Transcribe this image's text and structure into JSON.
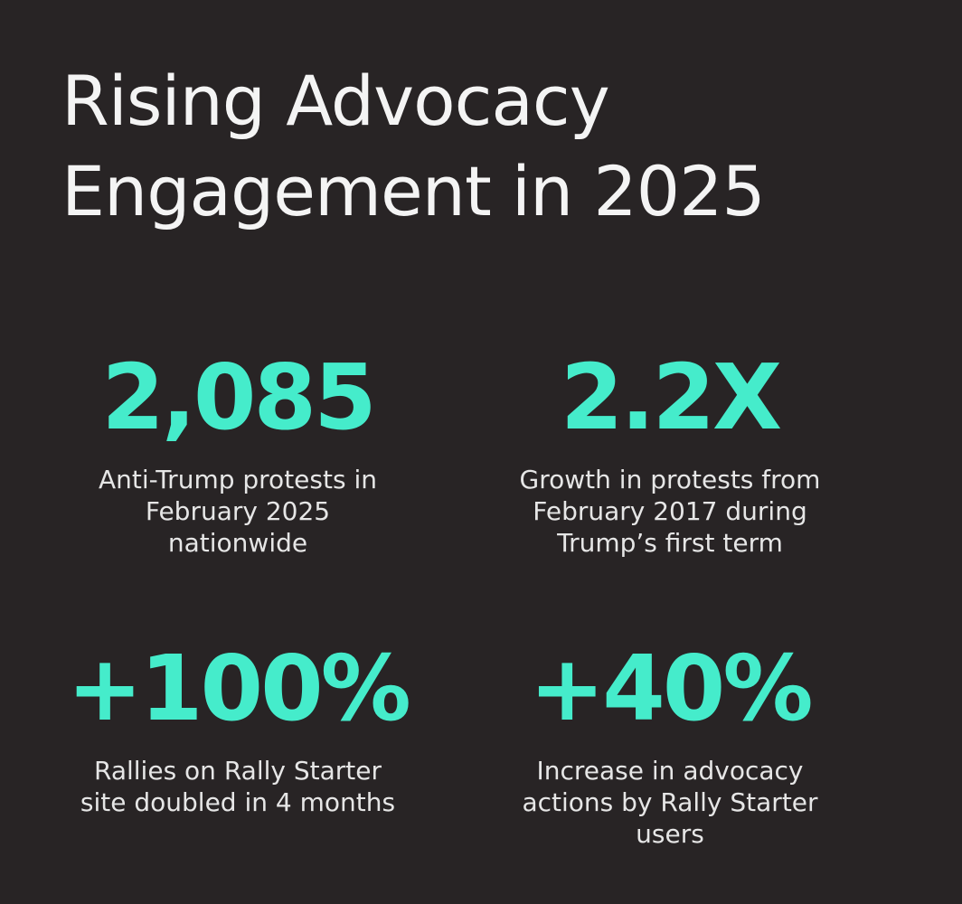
{
  "title": {
    "line1": "Rising Advocacy",
    "line2": "Engagement in 2025"
  },
  "stats": [
    {
      "value": "2,085",
      "description": [
        "Anti-Trump protests in",
        "February 2025",
        "nationwide"
      ]
    },
    {
      "value": "2.2X",
      "description": [
        "Growth in protests from",
        "February 2017 during",
        "Trump’s first term"
      ]
    },
    {
      "value": "+100%",
      "description": [
        "Rallies on Rally Starter",
        "site doubled in 4 months"
      ]
    },
    {
      "value": "+40%",
      "description": [
        "Increase in advocacy",
        "actions by Rally Starter",
        "users"
      ]
    }
  ],
  "colors": {
    "background": "#282425",
    "accent": "#45eccb",
    "text": "#e6e6e6"
  }
}
